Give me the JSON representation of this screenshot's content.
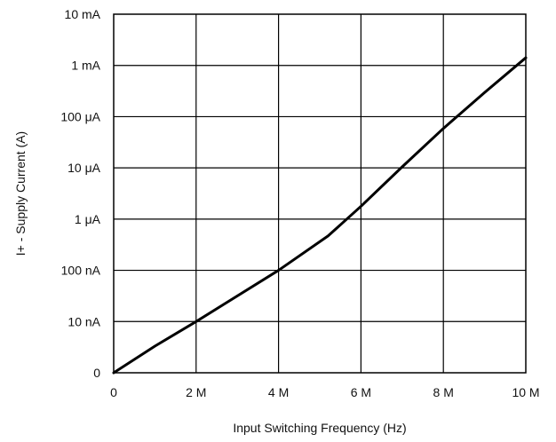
{
  "chart_data": {
    "type": "line",
    "title": "",
    "xlabel": "Input Switching Frequency (Hz)",
    "ylabel": "I+ -  Supply Current (A)",
    "grid": true,
    "line_color": "#000000",
    "x_ticks": [
      {
        "value": 0,
        "label": "0"
      },
      {
        "value": 2000000,
        "label": "2 M"
      },
      {
        "value": 4000000,
        "label": "4 M"
      },
      {
        "value": 6000000,
        "label": "6 M"
      },
      {
        "value": 8000000,
        "label": "8 M"
      },
      {
        "value": 10000000,
        "label": "10 M"
      }
    ],
    "y_ticks": [
      {
        "label": "0"
      },
      {
        "label": "10 nA"
      },
      {
        "label": "100 nA"
      },
      {
        "label": "1 μA"
      },
      {
        "label": "10 μA"
      },
      {
        "label": "100 μA"
      },
      {
        "label": "1 mA"
      },
      {
        "label": "10 mA"
      }
    ],
    "xlim": [
      0,
      10000000
    ],
    "ylim": [
      0,
      7
    ],
    "series": [
      {
        "x": [
          0,
          1000000,
          2000000,
          4000000,
          5200000,
          6000000,
          7000000,
          8000000,
          9000000,
          10000000
        ],
        "y": [
          0,
          0.52,
          1.0,
          2.0,
          2.67,
          3.25,
          4.02,
          4.77,
          5.47,
          6.15
        ]
      }
    ]
  }
}
